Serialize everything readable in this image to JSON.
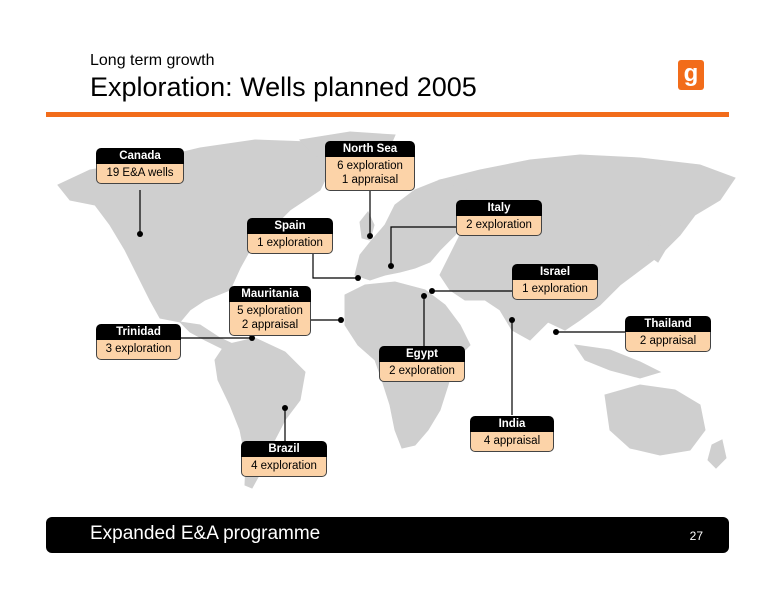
{
  "header": {
    "subtitle": "Long term growth",
    "title": "Exploration: Wells planned 2005",
    "logo_letter": "g",
    "accent_color": "#f26c1a"
  },
  "locations": {
    "canada": {
      "name": "Canada",
      "lines": [
        "19 E&A wells"
      ]
    },
    "north_sea": {
      "name": "North Sea",
      "lines": [
        "6 exploration",
        "1 appraisal"
      ]
    },
    "italy": {
      "name": "Italy",
      "lines": [
        "2 exploration"
      ]
    },
    "spain": {
      "name": "Spain",
      "lines": [
        "1 exploration"
      ]
    },
    "israel": {
      "name": "Israel",
      "lines": [
        "1 exploration"
      ]
    },
    "mauritania": {
      "name": "Mauritania",
      "lines": [
        "5 exploration",
        "2 appraisal"
      ]
    },
    "thailand": {
      "name": "Thailand",
      "lines": [
        "2 appraisal"
      ]
    },
    "trinidad": {
      "name": "Trinidad",
      "lines": [
        "3 exploration"
      ]
    },
    "egypt": {
      "name": "Egypt",
      "lines": [
        "2 exploration"
      ]
    },
    "india": {
      "name": "India",
      "lines": [
        "4 appraisal"
      ]
    },
    "brazil": {
      "name": "Brazil",
      "lines": [
        "4 exploration"
      ]
    }
  },
  "footer": {
    "text": "Expanded E&A programme",
    "page_number": "27"
  }
}
